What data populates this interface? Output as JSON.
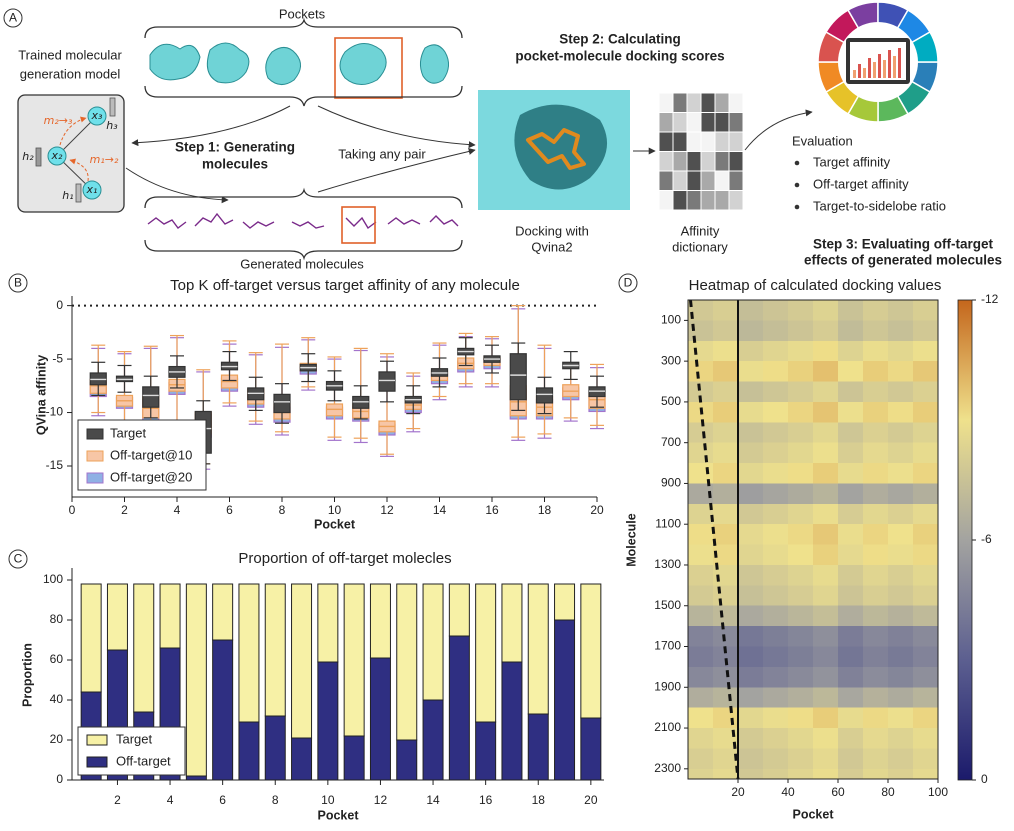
{
  "panel_labels": [
    "A",
    "B",
    "C",
    "D"
  ],
  "panel_a": {
    "pockets_label": "Pockets",
    "model_title": [
      "Trained molecular",
      "generation model"
    ],
    "node_labels": [
      "x₁",
      "x₂",
      "x₃"
    ],
    "hidden_labels": [
      "h₁",
      "h₂",
      "h₃"
    ],
    "message_labels": [
      "m₁→₂",
      "m₂→₃"
    ],
    "step1": [
      "Step 1: Generating",
      "molecules"
    ],
    "pair_label": "Taking any pair",
    "generated_label": "Generated molecules",
    "step2": [
      "Step 2: Calculating",
      "pocket-molecule docking scores"
    ],
    "docking_label": [
      "Docking with",
      "Qvina2"
    ],
    "dictionary_label": [
      "Affinity",
      "dictionary"
    ],
    "evaluation_title": "Evaluation",
    "evaluation_items": [
      "Target affinity",
      "Off-target affinity",
      "Target-to-sidelobe ratio"
    ],
    "step3": [
      "Step 3: Evaluating off-target",
      "effects of generated molecules"
    ]
  },
  "chart_data": [
    {
      "type": "box",
      "title": "Top K off-target versus target affinity of any molecule",
      "x_label": "Pocket",
      "y_label": "QVina affinity",
      "x": [
        1,
        2,
        3,
        4,
        5,
        6,
        7,
        8,
        9,
        10,
        11,
        12,
        13,
        14,
        15,
        16,
        17,
        18,
        19,
        20
      ],
      "xlim": [
        0,
        20
      ],
      "xticks": [
        0,
        2,
        4,
        6,
        8,
        10,
        12,
        14,
        16,
        18,
        20
      ],
      "ylim": [
        -17.9,
        0.9
      ],
      "yticks": [
        0,
        -5,
        -10,
        -15
      ],
      "hline": 0,
      "legend": "lower left",
      "series": [
        {
          "name": "Target",
          "color": "#4a4a4a",
          "edge_color": "#333333",
          "min": [
            -8.4,
            -8.1,
            -10.5,
            -7.7,
            -14.8,
            -7.0,
            -9.8,
            -11.0,
            -7.1,
            -8.9,
            -10.6,
            -9.0,
            -10.1,
            -7.6,
            -5.6,
            -6.3,
            -9.8,
            -10.1,
            -6.9,
            -9.5
          ],
          "q1": [
            -7.4,
            -7.1,
            -9.5,
            -6.7,
            -13.8,
            -6.0,
            -8.8,
            -10.0,
            -6.1,
            -7.9,
            -9.6,
            -8.0,
            -9.1,
            -6.6,
            -4.6,
            -5.3,
            -8.8,
            -9.1,
            -5.9,
            -8.5
          ],
          "median": [
            -6.9,
            -6.9,
            -8.4,
            -6.2,
            -11.5,
            -5.7,
            -8.2,
            -9.0,
            -5.8,
            -7.5,
            -9.0,
            -7.0,
            -8.8,
            -6.3,
            -4.3,
            -5.0,
            -6.5,
            -8.3,
            -5.6,
            -8.0
          ],
          "q3": [
            -6.3,
            -6.6,
            -7.6,
            -5.7,
            -9.9,
            -5.3,
            -7.7,
            -8.3,
            -5.5,
            -7.1,
            -8.5,
            -6.2,
            -8.5,
            -5.9,
            -4.0,
            -4.7,
            -4.5,
            -7.7,
            -5.3,
            -7.6
          ],
          "max": [
            -5.3,
            -5.6,
            -6.6,
            -4.7,
            -8.9,
            -4.3,
            -6.7,
            -7.3,
            -4.5,
            -6.1,
            -7.5,
            -5.2,
            -7.5,
            -4.9,
            -3.0,
            -3.7,
            -3.5,
            -6.7,
            -4.3,
            -6.6
          ]
        },
        {
          "name": "Off-target@10",
          "color": "#f7c6a6",
          "edge_color": "#eea25a",
          "min": [
            -10.0,
            -11.2,
            -12.3,
            -10.8,
            -14.8,
            -9.1,
            -10.8,
            -11.8,
            -7.6,
            -12.3,
            -12.4,
            -13.9,
            -11.5,
            -8.5,
            -7.3,
            -7.3,
            -12.3,
            -12.0,
            -10.5,
            -11.2
          ],
          "q1": [
            -8.2,
            -9.4,
            -10.5,
            -8.0,
            -12.0,
            -7.7,
            -9.2,
            -10.6,
            -6.1,
            -10.3,
            -10.5,
            -11.8,
            -9.7,
            -7.0,
            -5.9,
            -5.6,
            -10.3,
            -10.3,
            -8.5,
            -9.6
          ],
          "median": [
            -7.5,
            -8.9,
            -9.6,
            -7.4,
            -11.0,
            -7.1,
            -8.5,
            -10.0,
            -5.8,
            -9.7,
            -9.9,
            -11.3,
            -9.3,
            -6.6,
            -5.4,
            -5.2,
            -9.0,
            -9.5,
            -8.0,
            -8.8
          ],
          "q3": [
            -6.9,
            -8.4,
            -8.5,
            -6.9,
            -10.0,
            -6.5,
            -7.8,
            -9.2,
            -5.4,
            -9.2,
            -9.2,
            -10.8,
            -8.8,
            -6.1,
            -4.9,
            -4.8,
            -7.5,
            -8.5,
            -7.4,
            -8.2
          ],
          "max": [
            -3.7,
            -4.3,
            -3.8,
            -2.8,
            -6.0,
            -3.3,
            -4.4,
            -3.6,
            -3.0,
            -4.8,
            -4.0,
            -4.5,
            -6.3,
            -3.5,
            -2.6,
            -2.9,
            0.0,
            -3.7,
            -5.6,
            -5.5
          ]
        },
        {
          "name": "Off-target@20",
          "color": "#8fb0e4",
          "edge_color": "#a374cc",
          "min": [
            -10.3,
            -11.5,
            -12.6,
            -11.1,
            -15.3,
            -9.4,
            -11.1,
            -12.1,
            -7.9,
            -12.6,
            -12.8,
            -14.1,
            -11.8,
            -8.8,
            -7.6,
            -7.6,
            -12.6,
            -12.4,
            -10.8,
            -11.5
          ],
          "q1": [
            -8.5,
            -9.6,
            -10.8,
            -8.3,
            -12.3,
            -8.0,
            -9.5,
            -10.9,
            -6.4,
            -10.6,
            -10.8,
            -12.1,
            -10.0,
            -7.3,
            -6.2,
            -5.9,
            -10.6,
            -10.6,
            -8.8,
            -9.9
          ],
          "median": [
            -7.8,
            -9.1,
            -9.9,
            -7.7,
            -11.3,
            -7.4,
            -8.8,
            -10.3,
            -6.0,
            -10.0,
            -10.2,
            -11.6,
            -9.6,
            -6.9,
            -5.7,
            -5.5,
            -9.3,
            -9.8,
            -8.3,
            -9.1
          ],
          "q3": [
            -7.2,
            -8.6,
            -8.8,
            -7.2,
            -10.2,
            -6.8,
            -8.1,
            -9.5,
            -5.7,
            -9.5,
            -9.5,
            -11.1,
            -9.1,
            -6.4,
            -5.2,
            -5.1,
            -7.8,
            -8.8,
            -7.7,
            -8.5
          ],
          "max": [
            -4.0,
            -4.5,
            -4.0,
            -3.0,
            -6.2,
            -3.6,
            -4.6,
            -3.9,
            -3.2,
            -5.0,
            -4.2,
            -4.8,
            -6.6,
            -3.7,
            -2.9,
            -3.1,
            -0.3,
            -4.0,
            -5.8,
            -5.8
          ]
        }
      ]
    },
    {
      "type": "stacked_bar",
      "title": "Proportion of off-target molecles",
      "x_label": "Pocket",
      "y_label": "Proportion",
      "categories": [
        null,
        "2",
        null,
        "4",
        null,
        "6",
        null,
        "8",
        null,
        "10",
        null,
        "12",
        null,
        "14",
        null,
        "16",
        null,
        "18",
        null,
        "20"
      ],
      "ylim": [
        0,
        106
      ],
      "yticks": [
        0,
        20,
        40,
        60,
        80,
        100
      ],
      "legend": "lower left",
      "series": [
        {
          "name": "Target",
          "color": "#f7f1a6",
          "values": [
            54,
            33,
            64,
            32,
            96,
            28,
            69,
            66,
            77,
            39,
            76,
            37,
            78,
            58,
            26,
            69,
            39,
            65,
            18,
            67
          ]
        },
        {
          "name": "Off-target",
          "color": "#2f2f82",
          "values": [
            44,
            65,
            34,
            66,
            2,
            70,
            29,
            32,
            21,
            59,
            22,
            61,
            20,
            40,
            72,
            29,
            59,
            33,
            80,
            31
          ]
        }
      ]
    },
    {
      "type": "heatmap",
      "title": "Heatmap of calculated docking values",
      "x_label": "Pocket",
      "y_label": "Molecule",
      "xlim": [
        0,
        100
      ],
      "xticks": [
        20,
        40,
        60,
        80,
        100
      ],
      "ylim": [
        0,
        2350
      ],
      "y_inverted": true,
      "yticks": [
        100,
        300,
        500,
        700,
        900,
        1100,
        1300,
        1500,
        1700,
        1900,
        2100,
        2300
      ],
      "x_bins": [
        0,
        10,
        20,
        30,
        40,
        50,
        60,
        70,
        80,
        90,
        100
      ],
      "y_bins": [
        0,
        100,
        200,
        300,
        400,
        500,
        600,
        700,
        800,
        900,
        1000,
        1100,
        1200,
        1300,
        1400,
        1500,
        1600,
        1700,
        1800,
        1900,
        2000,
        2100,
        2200,
        2300,
        2350
      ],
      "values": [
        [
          -7.8,
          -8.1,
          -7.3,
          -7.6,
          -7.9,
          -8.3,
          -7.5,
          -8.0,
          -7.7,
          -8.1
        ],
        [
          -7.5,
          -7.8,
          -7.0,
          -7.3,
          -7.6,
          -8.0,
          -7.2,
          -7.7,
          -7.4,
          -7.8
        ],
        [
          -8.6,
          -8.9,
          -8.1,
          -8.4,
          -8.7,
          -9.1,
          -8.3,
          -8.8,
          -8.5,
          -8.9
        ],
        [
          -9.3,
          -9.6,
          -8.8,
          -9.1,
          -9.4,
          -9.8,
          -9.0,
          -9.5,
          -9.2,
          -9.6
        ],
        [
          -7.9,
          -8.2,
          -7.4,
          -7.7,
          -8.0,
          -8.4,
          -7.6,
          -8.1,
          -7.8,
          -8.2
        ],
        [
          -9.2,
          -9.5,
          -8.7,
          -9.0,
          -9.3,
          -9.7,
          -8.9,
          -9.4,
          -9.1,
          -9.5
        ],
        [
          -8.0,
          -8.3,
          -7.5,
          -7.8,
          -8.1,
          -8.5,
          -7.7,
          -8.2,
          -7.9,
          -8.3
        ],
        [
          -8.4,
          -8.7,
          -7.9,
          -8.2,
          -8.5,
          -8.9,
          -8.1,
          -8.6,
          -8.3,
          -8.7
        ],
        [
          -9.0,
          -9.3,
          -8.5,
          -8.8,
          -9.1,
          -9.5,
          -8.7,
          -9.2,
          -8.9,
          -9.3
        ],
        [
          -6.3,
          -6.6,
          -5.8,
          -6.1,
          -6.4,
          -6.8,
          -6.0,
          -6.5,
          -6.2,
          -6.6
        ],
        [
          -8.3,
          -8.6,
          -7.8,
          -8.1,
          -8.4,
          -8.8,
          -8.0,
          -8.5,
          -8.2,
          -8.6
        ],
        [
          -9.1,
          -9.4,
          -8.6,
          -8.9,
          -9.2,
          -9.6,
          -8.8,
          -9.3,
          -9.0,
          -9.4
        ],
        [
          -8.9,
          -9.2,
          -8.4,
          -8.7,
          -9.0,
          -9.4,
          -8.6,
          -9.1,
          -8.8,
          -9.2
        ],
        [
          -8.2,
          -8.5,
          -7.7,
          -8.0,
          -8.3,
          -8.7,
          -7.9,
          -8.4,
          -8.1,
          -8.5
        ],
        [
          -7.9,
          -8.2,
          -7.4,
          -7.7,
          -8.0,
          -8.4,
          -7.6,
          -8.1,
          -7.8,
          -8.2
        ],
        [
          -6.8,
          -7.1,
          -6.3,
          -6.6,
          -6.9,
          -7.3,
          -6.5,
          -7.0,
          -6.7,
          -7.1
        ],
        [
          -4.6,
          -4.9,
          -4.1,
          -4.4,
          -4.7,
          -5.1,
          -4.3,
          -4.8,
          -4.5,
          -4.9
        ],
        [
          -4.3,
          -4.6,
          -3.8,
          -4.1,
          -4.4,
          -4.8,
          -4.0,
          -4.5,
          -4.2,
          -4.6
        ],
        [
          -4.8,
          -5.1,
          -4.3,
          -4.6,
          -4.9,
          -5.3,
          -4.5,
          -5.0,
          -4.7,
          -5.1
        ],
        [
          -6.5,
          -6.8,
          -6.0,
          -6.3,
          -6.6,
          -7.0,
          -6.2,
          -6.7,
          -6.4,
          -6.8
        ],
        [
          -9.0,
          -9.3,
          -8.5,
          -8.8,
          -9.1,
          -9.5,
          -8.7,
          -9.2,
          -8.9,
          -9.3
        ],
        [
          -8.4,
          -8.7,
          -7.9,
          -8.2,
          -8.5,
          -8.9,
          -8.1,
          -8.6,
          -8.3,
          -8.7
        ],
        [
          -8.1,
          -8.4,
          -7.6,
          -7.9,
          -8.2,
          -8.6,
          -7.8,
          -8.3,
          -8.0,
          -8.4
        ],
        [
          -8.3,
          -8.6,
          -7.8,
          -8.1,
          -8.4,
          -8.8,
          -8.0,
          -8.5,
          -8.2,
          -8.6
        ]
      ],
      "lines": [
        {
          "x": [
            1,
            20
          ],
          "y": [
            0,
            2350
          ],
          "style": "dashed"
        },
        {
          "x": [
            20,
            20
          ],
          "y": [
            0,
            2350
          ],
          "style": "solid"
        }
      ],
      "colorbar": {
        "clim": [
          0,
          -12
        ],
        "ticks": [
          0,
          -6,
          -12
        ],
        "colormap": [
          "#1b1a6b",
          "#5c5f90",
          "#a3a3a0",
          "#efe18c",
          "#c4661c"
        ]
      }
    }
  ]
}
